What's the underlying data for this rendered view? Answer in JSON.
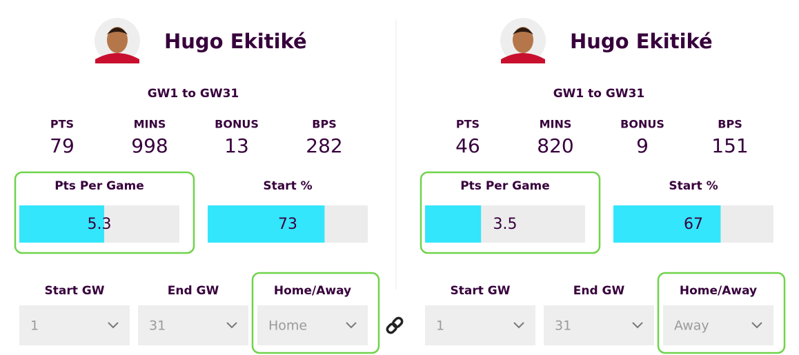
{
  "players": [
    {
      "name": "Hugo Ekitiké",
      "period": "GW1 to GW31",
      "stats": [
        {
          "label": "PTS",
          "value": 79
        },
        {
          "label": "MINS",
          "value": 998
        },
        {
          "label": "BONUS",
          "value": 13
        },
        {
          "label": "BPS",
          "value": 282
        }
      ],
      "bars": [
        {
          "label": "Pts Per Game",
          "value": 5.3,
          "range": [
            0,
            10
          ]
        },
        {
          "label": "Start %",
          "value": 73,
          "range": [
            0,
            100
          ]
        }
      ],
      "filters": [
        {
          "label": "Start GW",
          "value": "1"
        },
        {
          "label": "End GW",
          "value": "31"
        },
        {
          "label": "Home/Away",
          "value": "Home"
        }
      ]
    },
    {
      "name": "Hugo Ekitiké",
      "period": "GW1 to GW31",
      "stats": [
        {
          "label": "PTS",
          "value": 46
        },
        {
          "label": "MINS",
          "value": 820
        },
        {
          "label": "BONUS",
          "value": 9
        },
        {
          "label": "BPS",
          "value": 151
        }
      ],
      "bars": [
        {
          "label": "Pts Per Game",
          "value": 3.5,
          "range": [
            0,
            10
          ]
        },
        {
          "label": "Start %",
          "value": 67,
          "range": [
            0,
            100
          ]
        }
      ],
      "filters": [
        {
          "label": "Start GW",
          "value": "1"
        },
        {
          "label": "End GW",
          "value": "31"
        },
        {
          "label": "Home/Away",
          "value": "Away"
        }
      ]
    }
  ]
}
